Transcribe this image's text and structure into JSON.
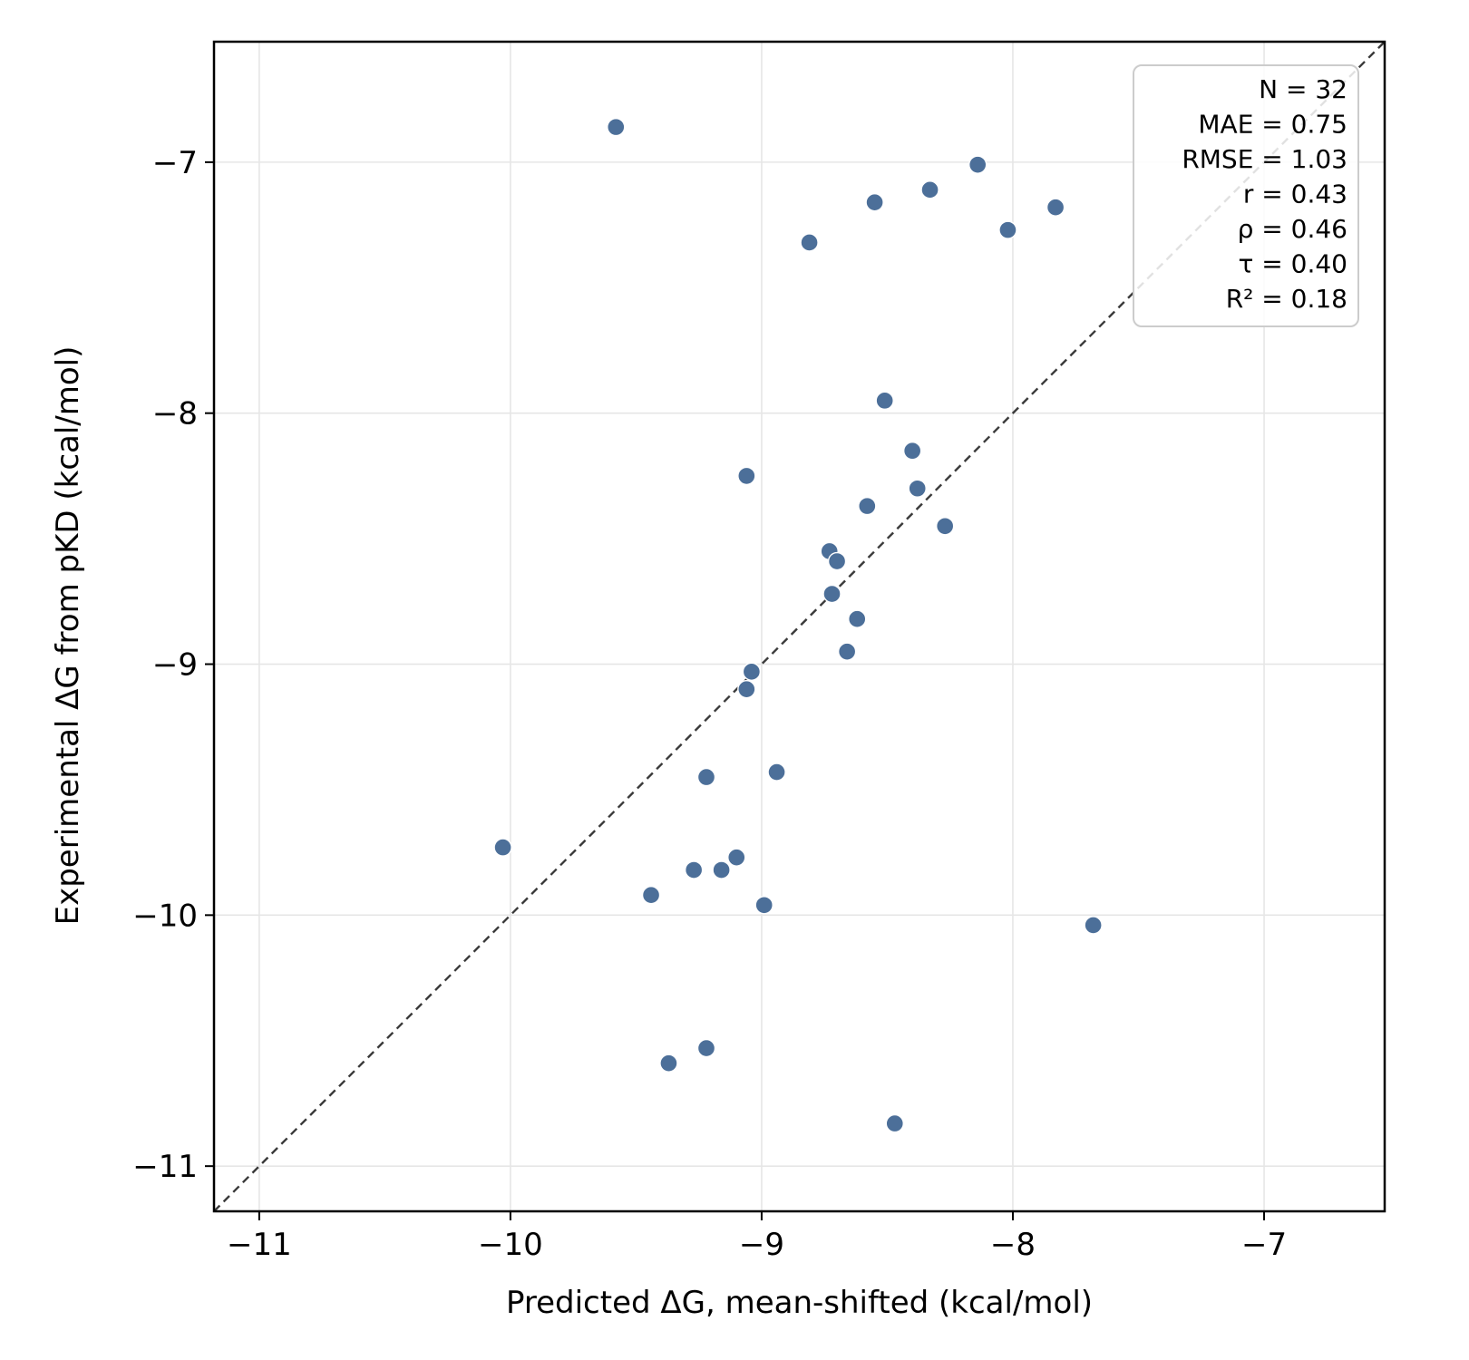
{
  "chart_data": {
    "type": "scatter",
    "xlabel": "Predicted ΔG, mean-shifted (kcal/mol)",
    "ylabel": "Experimental ΔG from pKD (kcal/mol)",
    "xlim": [
      -11.18,
      -6.52
    ],
    "ylim": [
      -11.18,
      -6.52
    ],
    "xticks": [
      -11,
      -10,
      -9,
      -8,
      -7
    ],
    "yticks": [
      -11,
      -10,
      -9,
      -8,
      -7
    ],
    "xtick_labels": [
      "−11",
      "−10",
      "−9",
      "−8",
      "−7"
    ],
    "ytick_labels": [
      "−11",
      "−10",
      "−9",
      "−8",
      "−7"
    ],
    "grid": true,
    "point_color": "#4c6f99",
    "identity_line": {
      "from": [
        -11.18,
        -11.18
      ],
      "to": [
        -6.52,
        -6.52
      ],
      "style": "dashed",
      "color": "#3a3a3a"
    },
    "stats_box": {
      "placement": "top-right",
      "lines": [
        "N = 32",
        "MAE = 0.75",
        "RMSE = 1.03",
        "r = 0.43",
        "ρ = 0.46",
        "τ = 0.40",
        "R² = 0.18"
      ]
    },
    "points": [
      {
        "x": -9.58,
        "y": -6.86
      },
      {
        "x": -8.14,
        "y": -7.01
      },
      {
        "x": -8.55,
        "y": -7.16
      },
      {
        "x": -8.33,
        "y": -7.11
      },
      {
        "x": -7.83,
        "y": -7.18
      },
      {
        "x": -8.02,
        "y": -7.27
      },
      {
        "x": -8.81,
        "y": -7.32
      },
      {
        "x": -8.51,
        "y": -7.95
      },
      {
        "x": -8.4,
        "y": -8.15
      },
      {
        "x": -9.06,
        "y": -8.25
      },
      {
        "x": -8.38,
        "y": -8.3
      },
      {
        "x": -8.58,
        "y": -8.37
      },
      {
        "x": -8.27,
        "y": -8.45
      },
      {
        "x": -8.73,
        "y": -8.55
      },
      {
        "x": -8.7,
        "y": -8.59
      },
      {
        "x": -8.72,
        "y": -8.72
      },
      {
        "x": -8.62,
        "y": -8.82
      },
      {
        "x": -8.66,
        "y": -8.95
      },
      {
        "x": -9.04,
        "y": -9.03
      },
      {
        "x": -9.06,
        "y": -9.1
      },
      {
        "x": -8.94,
        "y": -9.43
      },
      {
        "x": -9.22,
        "y": -9.45
      },
      {
        "x": -10.03,
        "y": -9.73
      },
      {
        "x": -9.1,
        "y": -9.77
      },
      {
        "x": -9.27,
        "y": -9.82
      },
      {
        "x": -9.16,
        "y": -9.82
      },
      {
        "x": -9.44,
        "y": -9.92
      },
      {
        "x": -8.99,
        "y": -9.96
      },
      {
        "x": -7.68,
        "y": -10.04
      },
      {
        "x": -9.22,
        "y": -10.53
      },
      {
        "x": -9.37,
        "y": -10.59
      },
      {
        "x": -8.47,
        "y": -10.83
      }
    ]
  }
}
